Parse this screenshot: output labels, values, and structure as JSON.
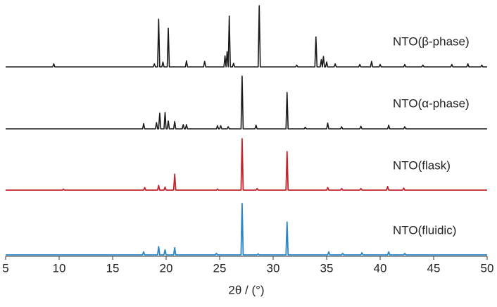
{
  "chart_data": {
    "type": "line",
    "x_label": "2θ / (°)",
    "xlim": [
      5,
      50
    ],
    "xticks": [
      5,
      10,
      15,
      20,
      25,
      30,
      35,
      40,
      45,
      50
    ],
    "ylim": [
      0,
      100
    ],
    "series": [
      {
        "name": "NTO(β-phase)",
        "color": "#1a1a1a",
        "x": [
          5,
          9.4,
          9.5,
          9.6,
          18.8,
          18.9,
          19.0,
          19.2,
          19.3,
          19.4,
          19.6,
          19.7,
          19.8,
          20.1,
          20.2,
          20.3,
          21.8,
          21.9,
          22.0,
          23.5,
          23.6,
          23.7,
          25.4,
          25.5,
          25.6,
          25.6,
          25.7,
          25.8,
          25.8,
          25.9,
          26.0,
          26.2,
          26.3,
          26.4,
          28.6,
          28.7,
          28.8,
          32.1,
          32.2,
          32.3,
          33.9,
          34.0,
          34.1,
          34.4,
          34.5,
          34.6,
          34.6,
          34.7,
          34.8,
          34.9,
          35.0,
          35.1,
          35.7,
          35.8,
          35.9,
          38.0,
          38.1,
          38.2,
          39.1,
          39.2,
          39.3,
          39.9,
          40.0,
          40.1,
          42.2,
          42.3,
          42.4,
          43.9,
          44.0,
          44.1,
          46.6,
          46.7,
          46.8,
          48.1,
          48.2,
          48.3,
          49.4,
          49.5,
          49.6,
          50
        ],
        "values": [
          0,
          0,
          5,
          0,
          0,
          5,
          0,
          0,
          78,
          0,
          0,
          8,
          0,
          0,
          63,
          0,
          0,
          10,
          0,
          0,
          9,
          0,
          0,
          18,
          0,
          0,
          25,
          0,
          0,
          83,
          0,
          0,
          6,
          0,
          0,
          100,
          0,
          0,
          3,
          0,
          0,
          49,
          0,
          0,
          12,
          0,
          0,
          17,
          0,
          0,
          8,
          0,
          0,
          5,
          0,
          0,
          4,
          0,
          0,
          9,
          0,
          0,
          4,
          0,
          0,
          4,
          0,
          0,
          3,
          0,
          0,
          4,
          0,
          0,
          5,
          0,
          0,
          3,
          0,
          0
        ]
      },
      {
        "name": "NTO(α-phase)",
        "color": "#1a1a1a",
        "x": [
          5,
          17.8,
          17.9,
          18.0,
          19.0,
          19.1,
          19.2,
          19.3,
          19.4,
          19.5,
          19.8,
          19.9,
          20.0,
          20.1,
          20.2,
          20.3,
          20.7,
          20.8,
          20.9,
          21.5,
          21.6,
          21.7,
          21.8,
          21.9,
          22.0,
          24.7,
          24.8,
          24.9,
          25.0,
          25.1,
          25.2,
          25.7,
          25.8,
          25.9,
          27.0,
          27.1,
          27.2,
          28.3,
          28.4,
          28.5,
          31.2,
          31.3,
          31.4,
          32.9,
          33.0,
          33.1,
          35.0,
          35.1,
          35.2,
          36.3,
          36.4,
          36.5,
          38.1,
          38.2,
          38.3,
          40.7,
          40.8,
          40.9,
          42.2,
          42.3,
          42.4,
          50
        ],
        "values": [
          0,
          0,
          10,
          0,
          0,
          12,
          0,
          0,
          30,
          0,
          0,
          31,
          0,
          0,
          15,
          0,
          0,
          14,
          0,
          0,
          8,
          0,
          0,
          8,
          0,
          0,
          6,
          0,
          0,
          6,
          0,
          0,
          4,
          0,
          0,
          100,
          0,
          0,
          7,
          0,
          0,
          69,
          0,
          0,
          3,
          0,
          0,
          11,
          0,
          0,
          4,
          0,
          0,
          5,
          0,
          0,
          7,
          0,
          0,
          4,
          0,
          0
        ]
      },
      {
        "name": "NTO(flask)",
        "color": "#c0262d",
        "x": [
          5,
          10.3,
          10.4,
          10.5,
          17.9,
          18.0,
          18.1,
          19.2,
          19.3,
          19.4,
          19.8,
          19.9,
          20.0,
          20.7,
          20.8,
          20.9,
          24.7,
          24.8,
          24.9,
          27.0,
          27.1,
          27.2,
          28.4,
          28.5,
          28.6,
          31.2,
          31.3,
          31.4,
          35.0,
          35.1,
          35.2,
          36.3,
          36.4,
          36.5,
          38.1,
          38.2,
          38.3,
          40.6,
          40.7,
          40.8,
          42.1,
          42.2,
          42.3,
          50
        ],
        "values": [
          0,
          0,
          2,
          0,
          0,
          5,
          0,
          0,
          9,
          0,
          0,
          6,
          0,
          0,
          31,
          0,
          0,
          2,
          0,
          0,
          100,
          0,
          0,
          3,
          0,
          0,
          75,
          0,
          0,
          5,
          0,
          0,
          3,
          0,
          0,
          3,
          0,
          0,
          7,
          0,
          0,
          4,
          0,
          0
        ]
      },
      {
        "name": "NTO(fluidic)",
        "color": "#2b86c5",
        "x": [
          5,
          17.8,
          17.9,
          18.0,
          19.2,
          19.3,
          19.4,
          19.8,
          19.9,
          20.0,
          20.7,
          20.8,
          20.9,
          24.6,
          24.7,
          24.8,
          27.0,
          27.1,
          27.2,
          28.5,
          28.6,
          28.7,
          31.2,
          31.3,
          31.4,
          35.1,
          35.2,
          35.3,
          36.4,
          36.5,
          36.6,
          38.2,
          38.3,
          38.4,
          40.7,
          40.8,
          40.9,
          42.2,
          42.3,
          42.4,
          50
        ],
        "values": [
          0,
          0,
          6,
          0,
          0,
          16,
          0,
          0,
          10,
          0,
          0,
          14,
          0,
          0,
          3,
          0,
          0,
          100,
          0,
          0,
          2,
          0,
          0,
          64,
          0,
          0,
          6,
          0,
          0,
          3,
          0,
          0,
          4,
          0,
          0,
          6,
          0,
          0,
          3,
          0,
          0
        ]
      }
    ]
  }
}
